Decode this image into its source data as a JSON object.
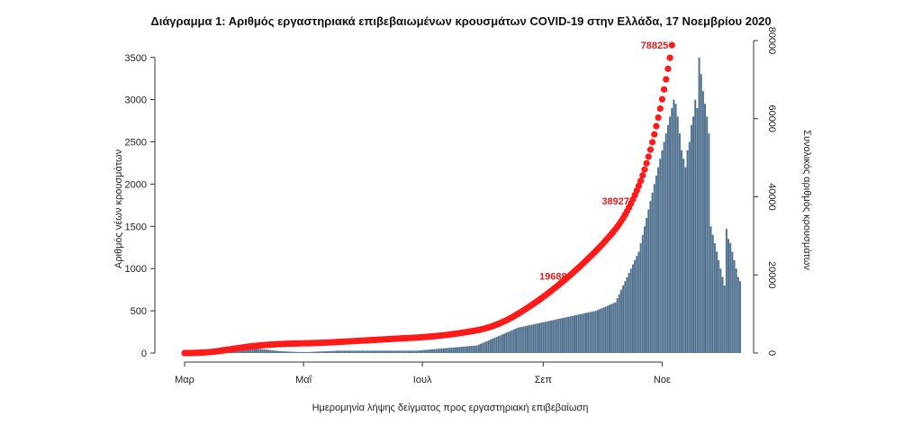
{
  "chart_data": {
    "type": "bar",
    "title": "Διάγραμμα 1: Αριθμός εργαστηριακά επιβεβαιωμένων κρουσμάτων COVID-19 στην Ελλάδα, 17 Νοεμβρίου 2020",
    "xlabel": "Ημερομηνία λήψης δείγματος προς εργαστηριακή επιβεβαίωση",
    "ylabel": "Αριθμός νέων κρουσμάτων",
    "y2label": "Συνολικός αριθμός κρουσμάτων",
    "ylim": [
      0,
      3700
    ],
    "y2lim": [
      0,
      80000
    ],
    "yticks": [
      0,
      500,
      1000,
      1500,
      2000,
      2500,
      3000,
      3500
    ],
    "y2ticks": [
      0,
      20000,
      40000,
      60000,
      80000
    ],
    "xticks": [
      {
        "label": "Μαρ",
        "day": 0
      },
      {
        "label": "Μαΐ",
        "day": 61
      },
      {
        "label": "Ιουλ",
        "day": 122
      },
      {
        "label": "Σεπ",
        "day": 184
      },
      {
        "label": "Νοε",
        "day": 245
      }
    ],
    "colors": {
      "bars": "#4e6f8e",
      "cumulative": "#ff1a1a",
      "annotation": "#e02020"
    },
    "bar_series": {
      "name": "Αριθμός νέων κρουσμάτων",
      "values": [
        2,
        3,
        5,
        8,
        10,
        12,
        15,
        18,
        22,
        25,
        28,
        30,
        35,
        40,
        45,
        50,
        55,
        60,
        65,
        70,
        72,
        75,
        78,
        80,
        82,
        85,
        80,
        78,
        75,
        72,
        70,
        68,
        65,
        62,
        60,
        58,
        55,
        52,
        50,
        48,
        45,
        42,
        40,
        38,
        35,
        32,
        30,
        28,
        26,
        24,
        22,
        20,
        19,
        18,
        17,
        16,
        15,
        14,
        13,
        12,
        12,
        12,
        12,
        12,
        13,
        14,
        15,
        16,
        17,
        18,
        19,
        20,
        21,
        22,
        23,
        24,
        25,
        26,
        27,
        28,
        28,
        28,
        28,
        28,
        28,
        28,
        28,
        28,
        28,
        28,
        28,
        28,
        28,
        28,
        28,
        28,
        28,
        28,
        28,
        28,
        28,
        28,
        28,
        28,
        28,
        28,
        28,
        28,
        28,
        28,
        28,
        28,
        28,
        28,
        28,
        28,
        28,
        28,
        28,
        28,
        30,
        32,
        34,
        36,
        38,
        40,
        42,
        44,
        46,
        48,
        50,
        52,
        54,
        56,
        58,
        60,
        62,
        64,
        66,
        68,
        70,
        72,
        74,
        76,
        78,
        80,
        82,
        84,
        86,
        88,
        90,
        100,
        110,
        120,
        130,
        140,
        150,
        160,
        170,
        180,
        190,
        200,
        210,
        220,
        230,
        240,
        250,
        260,
        270,
        280,
        290,
        300,
        305,
        310,
        315,
        320,
        325,
        330,
        335,
        340,
        345,
        350,
        355,
        360,
        365,
        370,
        375,
        380,
        385,
        390,
        395,
        400,
        405,
        410,
        415,
        420,
        425,
        430,
        435,
        440,
        445,
        450,
        455,
        460,
        465,
        470,
        475,
        480,
        485,
        490,
        495,
        500,
        510,
        520,
        530,
        540,
        550,
        560,
        570,
        580,
        590,
        600,
        650,
        700,
        750,
        800,
        850,
        900,
        950,
        1000,
        1050,
        1100,
        1150,
        1200,
        1300,
        1400,
        1500,
        1600,
        1700,
        1800,
        1900,
        2000,
        2100,
        2200,
        2300,
        2400,
        2500,
        2600,
        2700,
        2800,
        2900,
        3000,
        2950,
        2800,
        2600,
        2400,
        2300,
        2200,
        2400,
        2500,
        2700,
        2800,
        3000,
        2900,
        3500,
        3300,
        3100,
        2950,
        2800,
        2600,
        1500,
        1400,
        1300,
        1200,
        1100,
        1000,
        900,
        800,
        1471,
        1350,
        1300,
        1200,
        1100,
        1000,
        900,
        850
      ]
    },
    "line_series": {
      "name": "Συνολικός αριθμός κρουσμάτων",
      "axis": "right",
      "values": [
        2,
        5,
        10,
        18,
        28,
        40,
        55,
        73,
        95,
        120,
        148,
        178,
        213,
        253,
        298,
        348,
        403,
        463,
        528,
        598,
        670,
        745,
        823,
        903,
        985,
        1070,
        1150,
        1228,
        1303,
        1375,
        1445,
        1513,
        1578,
        1640,
        1700,
        1758,
        1813,
        1865,
        1915,
        1963,
        2008,
        2050,
        2090,
        2128,
        2163,
        2195,
        2225,
        2253,
        2279,
        2303,
        2325,
        2345,
        2364,
        2382,
        2399,
        2415,
        2430,
        2444,
        2457,
        2469,
        2481,
        2493,
        2505,
        2517,
        2530,
        2544,
        2559,
        2575,
        2592,
        2610,
        2629,
        2649,
        2670,
        2692,
        2715,
        2739,
        2764,
        2790,
        2817,
        2845,
        2873,
        2901,
        2929,
        2957,
        2985,
        3013,
        3041,
        3069,
        3097,
        3125,
        3153,
        3181,
        3209,
        3237,
        3265,
        3293,
        3321,
        3349,
        3377,
        3405,
        3433,
        3461,
        3489,
        3517,
        3545,
        3573,
        3601,
        3629,
        3657,
        3685,
        3713,
        3741,
        3769,
        3797,
        3825,
        3853,
        3881,
        3909,
        3937,
        3965,
        3995,
        4027,
        4061,
        4097,
        4135,
        4175,
        4217,
        4261,
        4307,
        4355,
        4405,
        4457,
        4511,
        4567,
        4625,
        4685,
        4747,
        4811,
        4877,
        4945,
        5015,
        5087,
        5161,
        5237,
        5315,
        5395,
        5477,
        5561,
        5647,
        5735,
        5825,
        5925,
        6035,
        6155,
        6285,
        6425,
        6575,
        6735,
        6905,
        7085,
        7275,
        7475,
        7685,
        7905,
        8135,
        8375,
        8625,
        8885,
        9155,
        9435,
        9725,
        10025,
        10330,
        10640,
        10955,
        11275,
        11600,
        11930,
        12265,
        12605,
        12950,
        13300,
        13655,
        14015,
        14380,
        14750,
        15125,
        15505,
        15890,
        16280,
        16675,
        17075,
        17480,
        17890,
        18305,
        18725,
        19150,
        19580,
        20015,
        20455,
        20900,
        21350,
        21805,
        22265,
        22730,
        23200,
        23675,
        24155,
        24640,
        25130,
        25625,
        26125,
        26635,
        27155,
        27685,
        28225,
        28775,
        29335,
        29905,
        30485,
        31075,
        31675,
        32325,
        33025,
        33775,
        34575,
        35425,
        36325,
        37275,
        38275,
        39325,
        40425,
        41575,
        42775,
        44075,
        45475,
        46975,
        48575,
        50275,
        52075,
        53975,
        55975,
        58075,
        60275,
        62575,
        64975,
        67475,
        70075,
        72775,
        75575,
        78825
      ]
    },
    "annotations": [
      {
        "text": "19688",
        "y2": 19688
      },
      {
        "text": "38927",
        "y2": 38927
      },
      {
        "text": "78825",
        "y2": 78825
      }
    ]
  }
}
